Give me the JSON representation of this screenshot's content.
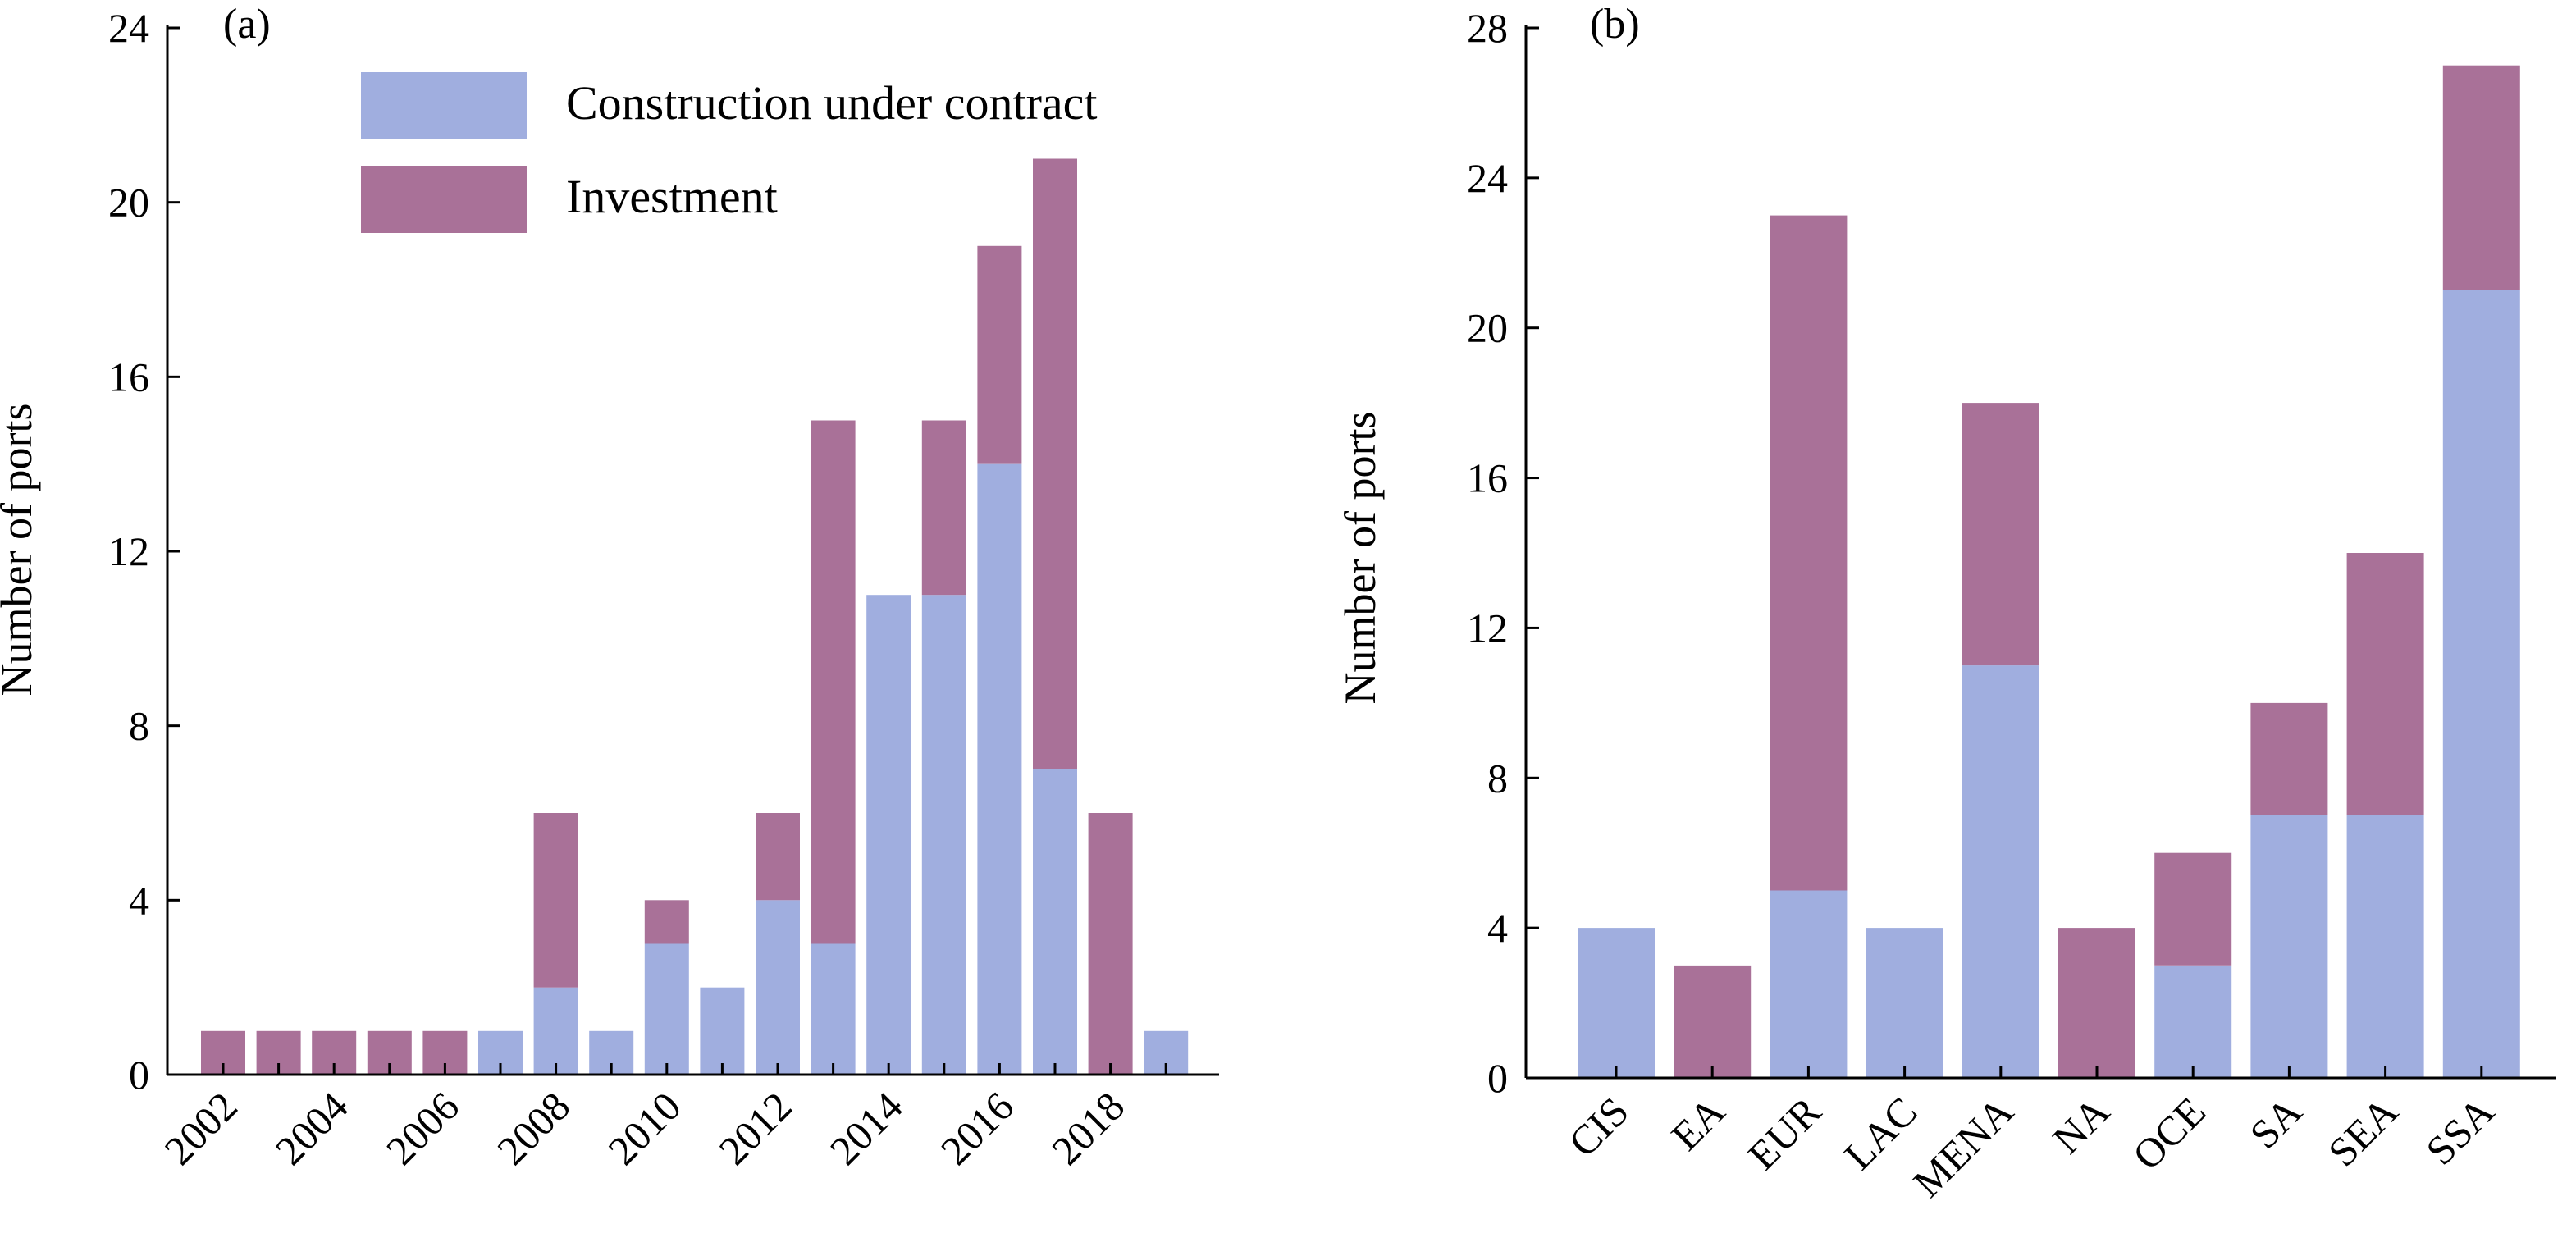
{
  "colors": {
    "construction": "#a0aedf",
    "investment": "#a97198"
  },
  "legend": {
    "construction_label": "Construction under contract",
    "investment_label": "Investment"
  },
  "chart_data": [
    {
      "type": "bar",
      "stacked": true,
      "panel_label": "(a)",
      "ylabel": "Number of ports",
      "xlabel": "",
      "ylim": [
        0,
        24
      ],
      "yticks": [
        "0",
        "4",
        "8",
        "12",
        "16",
        "20",
        "24"
      ],
      "categories": [
        "2002",
        "2003",
        "2004",
        "2005",
        "2006",
        "2007",
        "2008",
        "2009",
        "2010",
        "2011",
        "2012",
        "2013",
        "2014",
        "2015",
        "2016",
        "2017",
        "2018",
        "2019"
      ],
      "x_tick_labels": [
        "2002",
        "",
        "2004",
        "",
        "2006",
        "",
        "2008",
        "",
        "2010",
        "",
        "2012",
        "",
        "2014",
        "",
        "2016",
        "",
        "2018",
        ""
      ],
      "series": [
        {
          "name": "Construction under contract",
          "values": [
            0,
            0,
            0,
            0,
            0,
            1,
            2,
            1,
            3,
            2,
            4,
            3,
            11,
            11,
            14,
            7,
            0,
            1
          ]
        },
        {
          "name": "Investment",
          "values": [
            1,
            1,
            1,
            1,
            1,
            0,
            4,
            0,
            1,
            0,
            2,
            12,
            0,
            4,
            5,
            14,
            6,
            0
          ]
        }
      ],
      "legend_position": "top-center",
      "grid": false
    },
    {
      "type": "bar",
      "stacked": true,
      "panel_label": "(b)",
      "ylabel": "Number of ports",
      "xlabel": "",
      "ylim": [
        0,
        28
      ],
      "yticks": [
        "0",
        "4",
        "8",
        "12",
        "16",
        "20",
        "24",
        "28"
      ],
      "categories": [
        "CIS",
        "EA",
        "EUR",
        "LAC",
        "MENA",
        "NA",
        "OCE",
        "SA",
        "SEA",
        "SSA"
      ],
      "x_tick_labels": [
        "CIS",
        "EA",
        "EUR",
        "LAC",
        "MENA",
        "NA",
        "OCE",
        "SA",
        "SEA",
        "SSA"
      ],
      "series": [
        {
          "name": "Construction under contract",
          "values": [
            4,
            0,
            5,
            4,
            11,
            0,
            3,
            7,
            7,
            21
          ]
        },
        {
          "name": "Investment",
          "values": [
            0,
            3,
            18,
            0,
            7,
            4,
            3,
            3,
            7,
            6
          ]
        }
      ],
      "grid": false
    }
  ]
}
